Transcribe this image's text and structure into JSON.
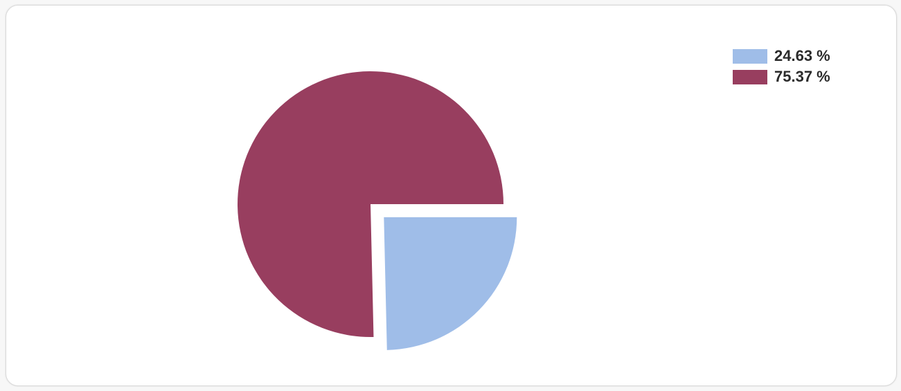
{
  "chart_data": {
    "type": "pie",
    "slices": [
      {
        "label": "24.63 %",
        "value": 24.63,
        "color": "#9fbde8",
        "exploded": true
      },
      {
        "label": "75.37 %",
        "value": 75.37,
        "color": "#983e5f",
        "exploded": false
      }
    ],
    "legend_position": "top-right",
    "start_angle_deg": 0,
    "direction": "clockwise"
  }
}
